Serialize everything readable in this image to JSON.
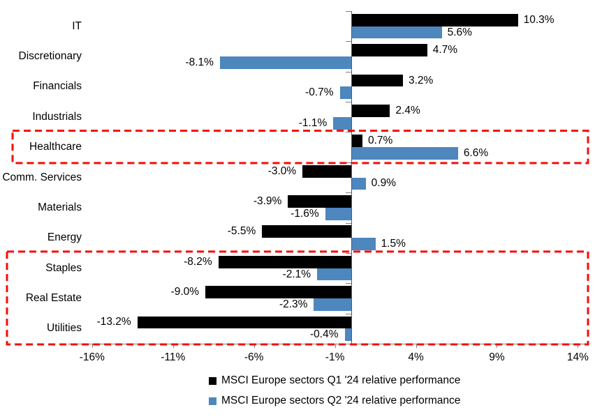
{
  "chart_data": {
    "type": "bar",
    "orientation": "horizontal",
    "title": "",
    "xlabel": "",
    "ylabel": "",
    "xlim": [
      -17.5,
      14.5
    ],
    "grid": false,
    "legend_position": "bottom",
    "x_tick_values": [
      -16,
      -11,
      -6,
      -1,
      4,
      9,
      14
    ],
    "x_tick_labels": [
      "-16%",
      "-11%",
      "-6%",
      "-1%",
      "4%",
      "9%",
      "14%"
    ],
    "categories": [
      "IT",
      "Discretionary",
      "Financials",
      "Industrials",
      "Healthcare",
      "Comm. Services",
      "Materials",
      "Energy",
      "Staples",
      "Real Estate",
      "Utilities"
    ],
    "series": [
      {
        "name": "MSCI Europe sectors Q1 '24 relative performance",
        "color": "#000000",
        "values": [
          10.3,
          4.7,
          3.2,
          2.4,
          0.7,
          -3.0,
          -3.9,
          -5.5,
          -8.2,
          -9.0,
          -13.2
        ],
        "labels": [
          "10.3%",
          "4.7%",
          "3.2%",
          "2.4%",
          "0.7%",
          "-3.0%",
          "-3.9%",
          "-5.5%",
          "-8.2%",
          "-9.0%",
          "-13.2%"
        ]
      },
      {
        "name": "MSCI Europe sectors Q2 '24 relative performance",
        "color": "#4E86BE",
        "values": [
          5.6,
          -8.1,
          -0.7,
          -1.1,
          6.6,
          0.9,
          -1.6,
          1.5,
          -2.1,
          -2.3,
          -0.4
        ],
        "labels": [
          "5.6%",
          "-8.1%",
          "-0.7%",
          "-1.1%",
          "6.6%",
          "0.9%",
          "-1.6%",
          "1.5%",
          "-2.1%",
          "-2.3%",
          "-0.4%"
        ]
      }
    ],
    "highlights": [
      {
        "categories": [
          "Healthcare"
        ],
        "style": "red-dashed-box"
      },
      {
        "categories": [
          "Staples",
          "Real Estate",
          "Utilities"
        ],
        "style": "red-dashed-box"
      }
    ]
  },
  "colors": {
    "q1_bar": "#000000",
    "q2_bar": "#4E86BE",
    "highlight_border": "#FA0A0A",
    "axis_line": "#808080",
    "category_axis_line": "#595959",
    "text": "#000000",
    "background": "#FFFFFF"
  }
}
